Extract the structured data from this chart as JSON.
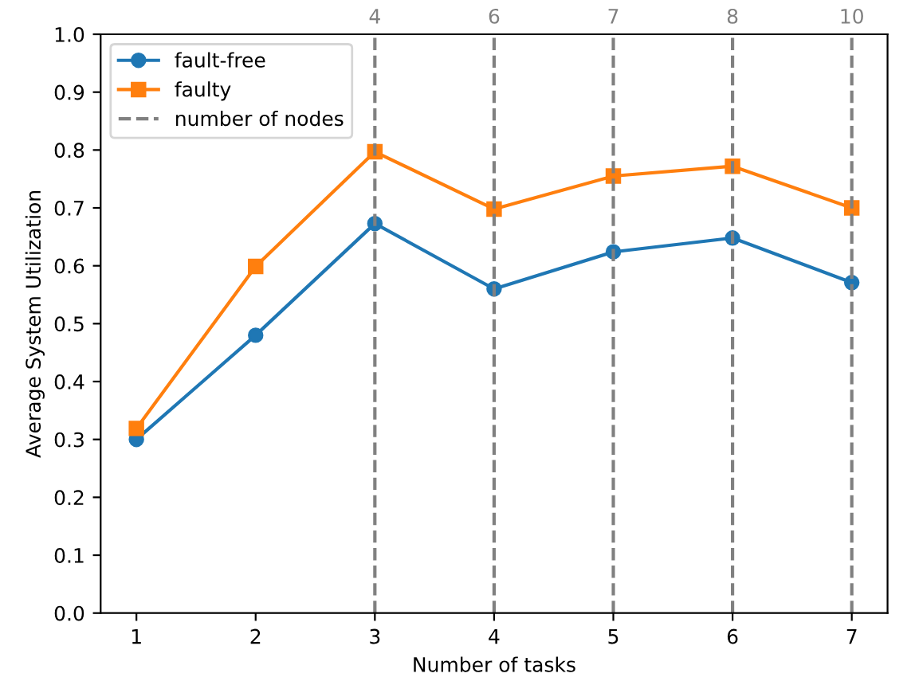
{
  "chart_data": {
    "type": "line",
    "xlabel": "Number of tasks",
    "ylabel": "Average System Utilization",
    "x": [
      1,
      2,
      3,
      4,
      5,
      6,
      7
    ],
    "series": [
      {
        "name": "fault-free",
        "color": "#1f77b4",
        "marker": "circle",
        "values": [
          0.3,
          0.48,
          0.673,
          0.56,
          0.624,
          0.648,
          0.571
        ]
      },
      {
        "name": "faulty",
        "color": "#ff7f0e",
        "marker": "square",
        "values": [
          0.319,
          0.599,
          0.797,
          0.698,
          0.755,
          0.772,
          0.7
        ]
      }
    ],
    "xlim": [
      0.7,
      7.3
    ],
    "xticks": [
      1,
      2,
      3,
      4,
      5,
      6,
      7
    ],
    "ylim": [
      0,
      1
    ],
    "yticks": [
      {
        "value": 0,
        "label": "0.0"
      },
      0.1,
      0.2,
      0.3,
      0.4,
      0.5,
      0.6,
      0.7,
      0.8,
      0.9,
      {
        "value": 1,
        "label": "1.0"
      }
    ],
    "annotations": [
      "number of nodes",
      {
        "text": "4",
        "x": 3,
        "y": 1
      },
      {
        "text": "6",
        "x": 4,
        "y": 1
      },
      {
        "text": "7",
        "x": 5,
        "y": 1
      },
      {
        "text": "8",
        "x": 6,
        "y": 1
      },
      {
        "text": "10",
        "x": 7,
        "y": 1
      }
    ],
    "ref_lines": [
      {
        "axis": "x",
        "value": 3,
        "color": "#808080",
        "line_style": "dashed"
      },
      {
        "axis": "x",
        "value": 4,
        "color": "#808080",
        "line_style": "dashed"
      },
      {
        "axis": "x",
        "value": 5,
        "color": "#808080",
        "line_style": "dashed"
      },
      {
        "axis": "x",
        "value": 6,
        "color": "#808080",
        "line_style": "dashed"
      },
      {
        "axis": "x",
        "value": 7,
        "color": "#808080",
        "line_style": "dashed"
      }
    ],
    "grid": false,
    "legend": "top left"
  }
}
